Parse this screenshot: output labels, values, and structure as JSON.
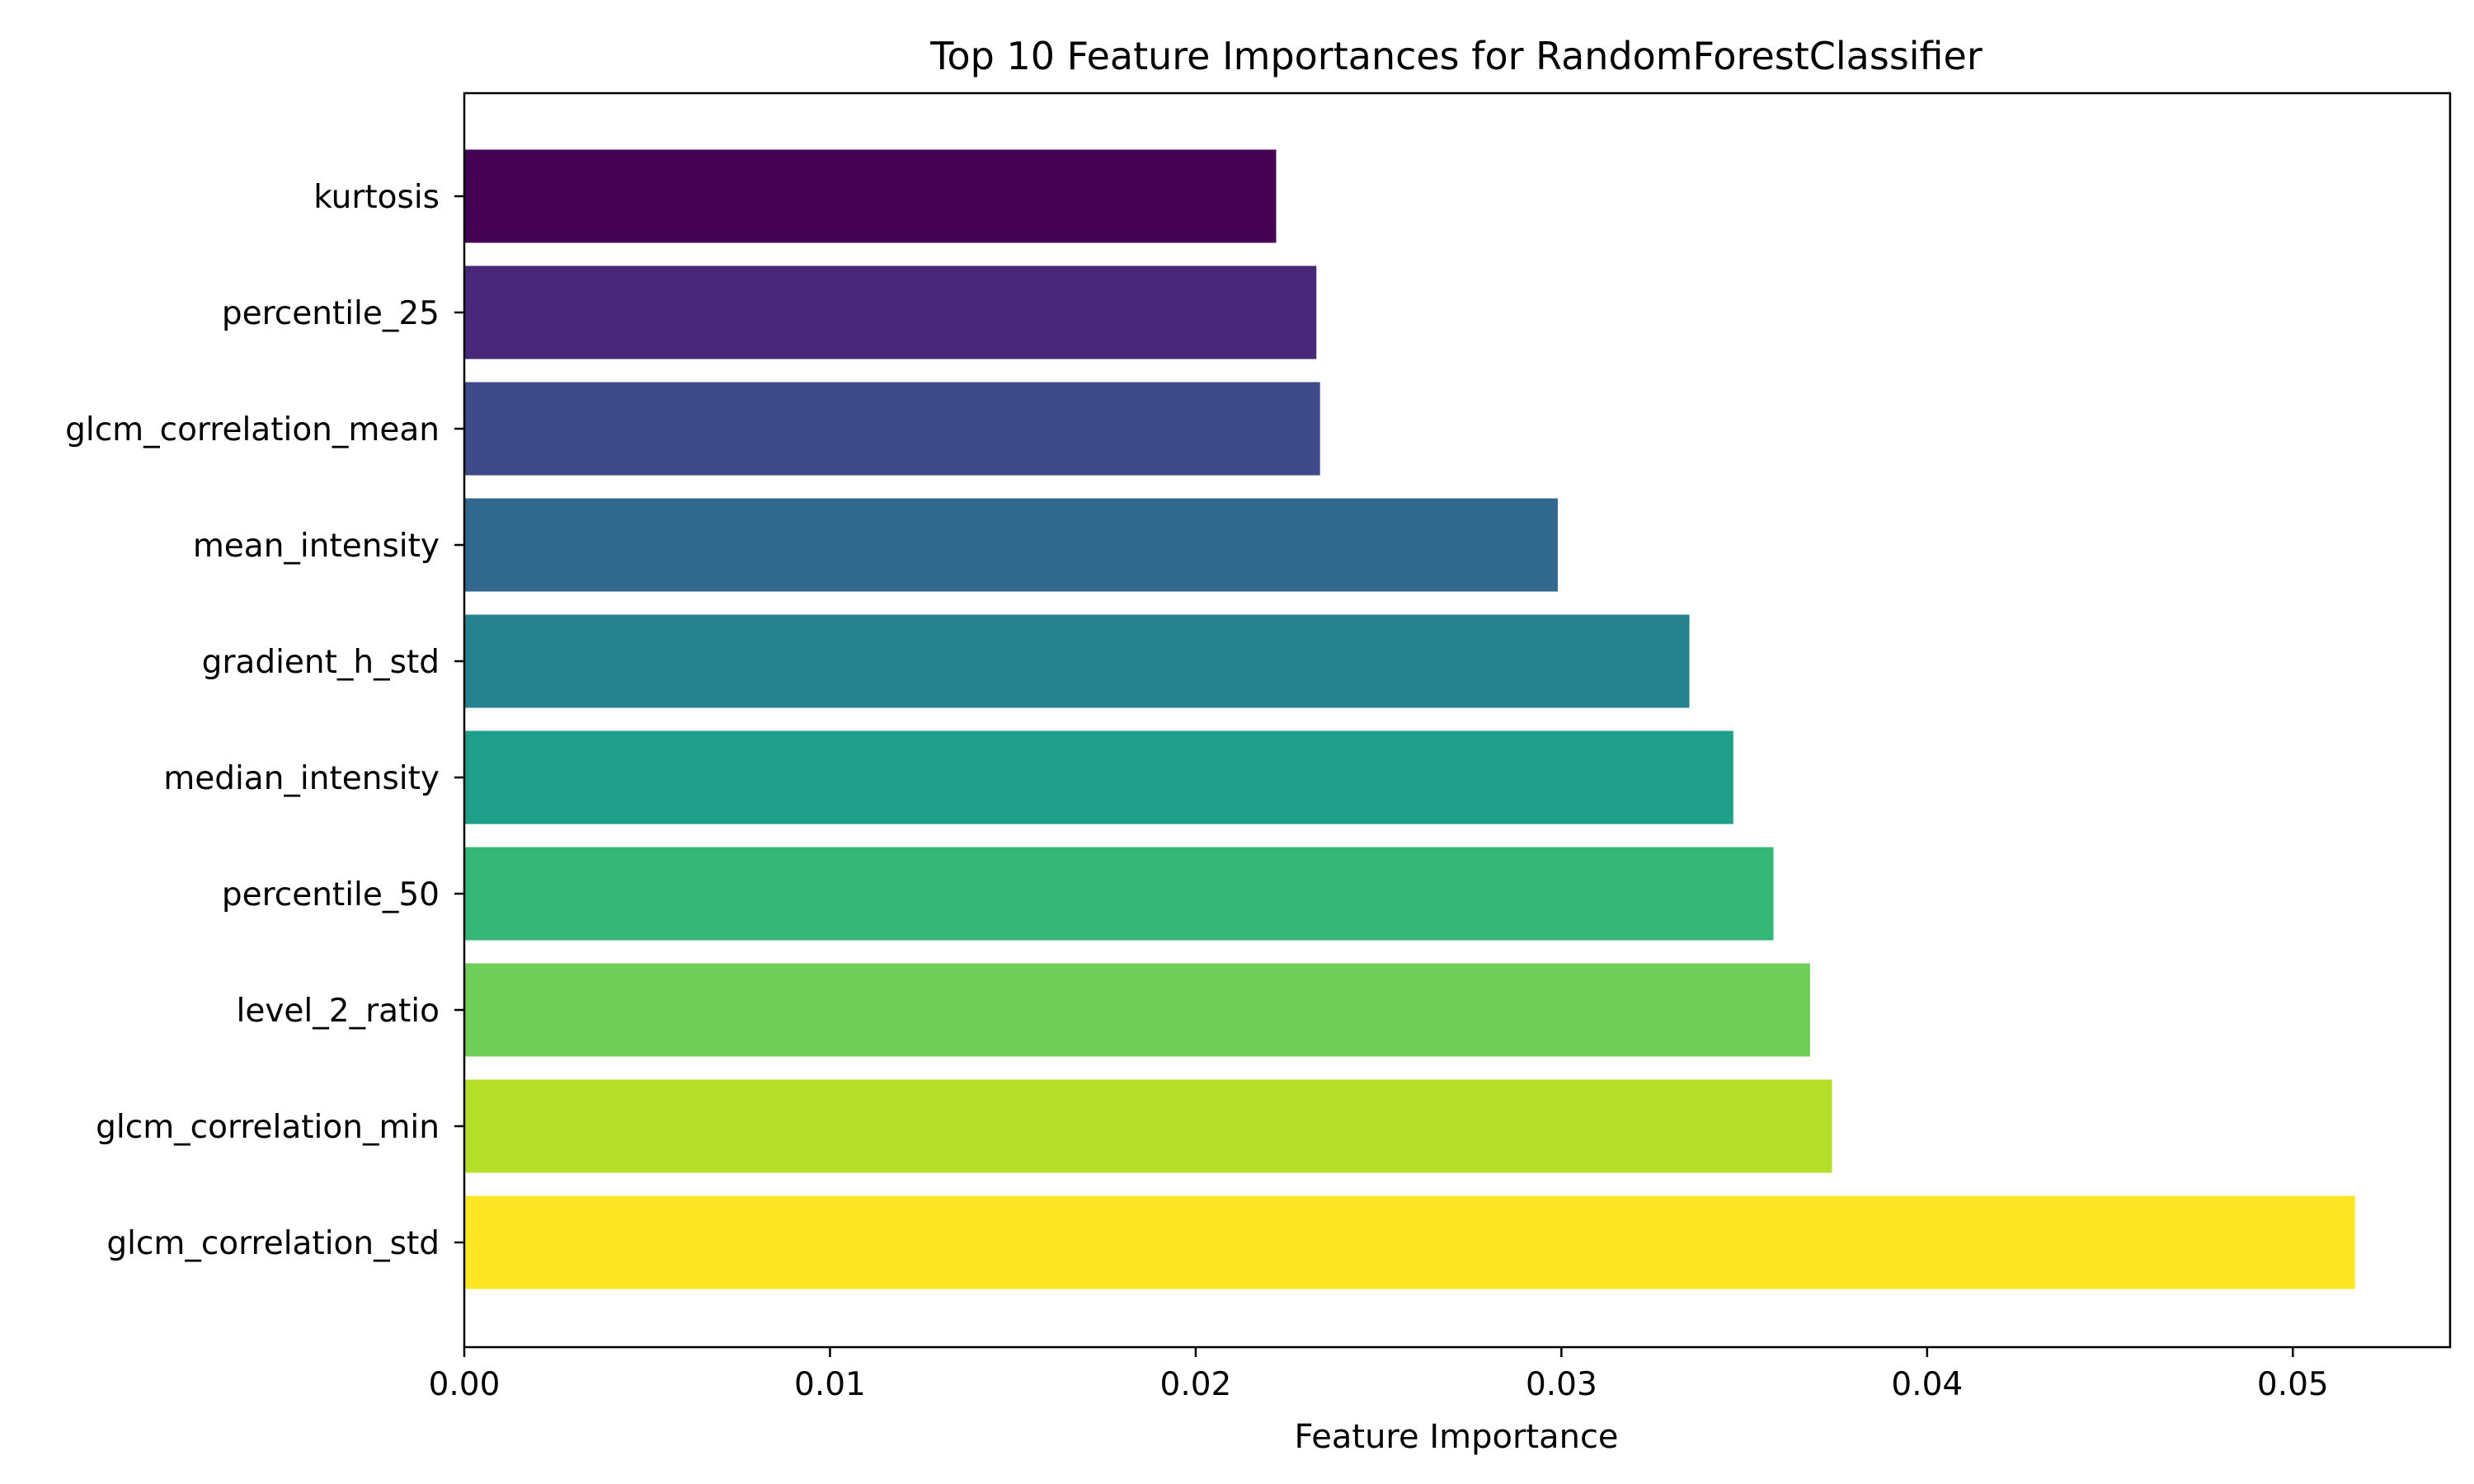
{
  "chart_data": {
    "type": "bar",
    "orientation": "horizontal",
    "title": "Top 10 Feature Importances for RandomForestClassifier",
    "xlabel": "Feature Importance",
    "ylabel": "",
    "categories": [
      "kurtosis",
      "percentile_25",
      "glcm_correlation_mean",
      "mean_intensity",
      "gradient_h_std",
      "median_intensity",
      "percentile_50",
      "level_2_ratio",
      "glcm_correlation_min",
      "glcm_correlation_std"
    ],
    "values": [
      0.0222,
      0.0233,
      0.0234,
      0.0299,
      0.0335,
      0.0347,
      0.0358,
      0.0368,
      0.0374,
      0.0517
    ],
    "colors": [
      "#440154",
      "#482878",
      "#3e4a89",
      "#31688e",
      "#26828e",
      "#1f9e89",
      "#35b779",
      "#6ece58",
      "#b5de2b",
      "#fde725"
    ],
    "xlim": [
      0,
      0.0543
    ],
    "xticks": [
      0.0,
      0.01,
      0.02,
      0.03,
      0.04,
      0.05
    ],
    "xtick_labels": [
      "0.00",
      "0.01",
      "0.02",
      "0.03",
      "0.04",
      "0.05"
    ],
    "grid": false,
    "legend": "none"
  }
}
